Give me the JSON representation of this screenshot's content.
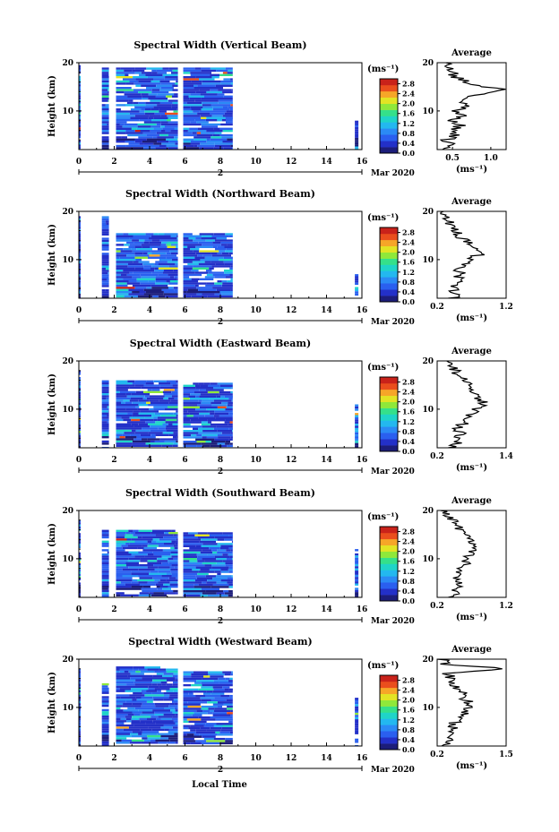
{
  "xlabel": "Local Time",
  "date_label": "Mar 2020",
  "day_marker": "2",
  "colorbar_unit": "(ms⁻¹)",
  "avg_xlabel": "(ms⁻¹)",
  "avg_title": "Average",
  "ylabel": "Height (km)",
  "colors": {
    "colormap": [
      "#1c1d7a",
      "#2330c8",
      "#2a5fef",
      "#2b8af5",
      "#23b8ef",
      "#1fd4c8",
      "#35e08a",
      "#8fe83a",
      "#e2e424",
      "#f6a628",
      "#ea4e1d",
      "#c9221a"
    ]
  },
  "chart_data": [
    {
      "type": "heatmap",
      "title": "Spectral Width (Vertical Beam)",
      "xlabel": "Local Time",
      "ylabel": "Height (km)",
      "xlim": [
        0,
        16
      ],
      "ylim": [
        2,
        20
      ],
      "xticks": [
        "0",
        "2",
        "4",
        "6",
        "8",
        "10",
        "12",
        "14",
        "16"
      ],
      "yticks": [
        "10",
        "20"
      ],
      "colorbar": {
        "ticks": [
          "0.0",
          "0.4",
          "0.8",
          "1.2",
          "1.6",
          "2.0",
          "2.4",
          "2.8"
        ],
        "range": [
          0,
          3.0
        ]
      },
      "data_blocks": [
        [
          0.0,
          0.1,
          0.0,
          19.5
        ],
        [
          1.3,
          1.7,
          2.0,
          19.0
        ],
        [
          2.1,
          5.6,
          2.5,
          19.0
        ],
        [
          5.9,
          8.7,
          2.5,
          19.0
        ],
        [
          15.6,
          15.8,
          2.0,
          8.0
        ]
      ],
      "average": {
        "xticks": [
          "0.5",
          "1.0"
        ],
        "xlim": [
          0.3,
          1.2
        ],
        "profile": [
          [
            2,
            0.45
          ],
          [
            3,
            0.5
          ],
          [
            4,
            0.42
          ],
          [
            5,
            0.55
          ],
          [
            6,
            0.5
          ],
          [
            7,
            0.6
          ],
          [
            8,
            0.48
          ],
          [
            9,
            0.62
          ],
          [
            10,
            0.55
          ],
          [
            11,
            0.7
          ],
          [
            12,
            0.6
          ],
          [
            13,
            0.75
          ],
          [
            14,
            1.05
          ],
          [
            14.5,
            1.15
          ],
          [
            15,
            0.9
          ],
          [
            16,
            0.7
          ],
          [
            17,
            0.55
          ],
          [
            18,
            0.5
          ],
          [
            19,
            0.45
          ],
          [
            20,
            0.4
          ]
        ]
      }
    },
    {
      "type": "heatmap",
      "title": "Spectral Width (Northward Beam)",
      "xlabel": "Local Time",
      "ylabel": "Height (km)",
      "xlim": [
        0,
        16
      ],
      "ylim": [
        2,
        20
      ],
      "xticks": [
        "0",
        "2",
        "4",
        "6",
        "8",
        "10",
        "12",
        "14",
        "16"
      ],
      "yticks": [
        "10",
        "20"
      ],
      "colorbar": {
        "ticks": [
          "0.0",
          "0.4",
          "0.8",
          "1.2",
          "1.6",
          "2.0",
          "2.4",
          "2.8"
        ],
        "range": [
          0,
          3.0
        ]
      },
      "data_blocks": [
        [
          0.0,
          0.1,
          0.0,
          19.0
        ],
        [
          1.3,
          1.7,
          2.0,
          19.0
        ],
        [
          2.1,
          5.6,
          2.5,
          15.5
        ],
        [
          5.9,
          8.7,
          2.5,
          15.5
        ],
        [
          15.6,
          15.8,
          2.0,
          7.0
        ]
      ],
      "average": {
        "xticks": [
          "0.2",
          "1.2"
        ],
        "xlim": [
          0.2,
          1.2
        ],
        "profile": [
          [
            2,
            0.45
          ],
          [
            3,
            0.5
          ],
          [
            4,
            0.42
          ],
          [
            5,
            0.52
          ],
          [
            6,
            0.48
          ],
          [
            7,
            0.55
          ],
          [
            8,
            0.5
          ],
          [
            9,
            0.6
          ],
          [
            10,
            0.7
          ],
          [
            11,
            0.8
          ],
          [
            12,
            0.75
          ],
          [
            13,
            0.7
          ],
          [
            14,
            0.6
          ],
          [
            15,
            0.5
          ],
          [
            16,
            0.45
          ],
          [
            17,
            0.4
          ],
          [
            18,
            0.38
          ],
          [
            19,
            0.35
          ],
          [
            20,
            0.3
          ]
        ]
      }
    },
    {
      "type": "heatmap",
      "title": "Spectral Width (Eastward Beam)",
      "xlabel": "Local Time",
      "ylabel": "Height (km)",
      "xlim": [
        0,
        16
      ],
      "ylim": [
        2,
        20
      ],
      "xticks": [
        "0",
        "2",
        "4",
        "6",
        "8",
        "10",
        "12",
        "14",
        "16"
      ],
      "yticks": [
        "10",
        "20"
      ],
      "colorbar": {
        "ticks": [
          "0.0",
          "0.4",
          "0.8",
          "1.2",
          "1.6",
          "2.0",
          "2.4",
          "2.8"
        ],
        "range": [
          0,
          3.0
        ]
      },
      "data_blocks": [
        [
          0.0,
          0.1,
          0.0,
          18.0
        ],
        [
          1.3,
          1.7,
          2.0,
          16.0
        ],
        [
          2.1,
          5.6,
          2.5,
          16.0
        ],
        [
          5.9,
          8.7,
          2.5,
          15.5
        ],
        [
          15.6,
          15.8,
          2.0,
          11.0
        ]
      ],
      "average": {
        "xticks": [
          "0.2",
          "1.4"
        ],
        "xlim": [
          0.2,
          1.4
        ],
        "profile": [
          [
            2,
            0.5
          ],
          [
            3,
            0.55
          ],
          [
            4,
            0.52
          ],
          [
            5,
            0.6
          ],
          [
            6,
            0.58
          ],
          [
            7,
            0.65
          ],
          [
            8,
            0.7
          ],
          [
            9,
            0.8
          ],
          [
            10,
            0.9
          ],
          [
            11,
            1.0
          ],
          [
            12,
            0.95
          ],
          [
            13,
            0.9
          ],
          [
            14,
            0.85
          ],
          [
            15,
            0.75
          ],
          [
            16,
            0.65
          ],
          [
            17,
            0.55
          ],
          [
            18,
            0.5
          ],
          [
            19,
            0.45
          ],
          [
            20,
            0.4
          ]
        ]
      }
    },
    {
      "type": "heatmap",
      "title": "Spectral Width (Southward Beam)",
      "xlabel": "Local Time",
      "ylabel": "Height (km)",
      "xlim": [
        0,
        16
      ],
      "ylim": [
        2,
        20
      ],
      "xticks": [
        "0",
        "2",
        "4",
        "6",
        "8",
        "10",
        "12",
        "14",
        "16"
      ],
      "yticks": [
        "10",
        "20"
      ],
      "colorbar": {
        "ticks": [
          "0.0",
          "0.4",
          "0.8",
          "1.2",
          "1.6",
          "2.0",
          "2.4",
          "2.8"
        ],
        "range": [
          0,
          3.0
        ]
      },
      "data_blocks": [
        [
          0.0,
          0.1,
          0.0,
          18.0
        ],
        [
          1.3,
          1.7,
          2.0,
          16.0
        ],
        [
          2.1,
          5.6,
          2.5,
          16.0
        ],
        [
          5.9,
          8.7,
          2.5,
          15.5
        ],
        [
          15.6,
          15.8,
          2.0,
          12.0
        ]
      ],
      "average": {
        "xticks": [
          "0.2",
          "1.2"
        ],
        "xlim": [
          0.2,
          1.2
        ],
        "profile": [
          [
            2,
            0.45
          ],
          [
            3,
            0.5
          ],
          [
            4,
            0.45
          ],
          [
            5,
            0.55
          ],
          [
            6,
            0.5
          ],
          [
            7,
            0.55
          ],
          [
            8,
            0.5
          ],
          [
            9,
            0.6
          ],
          [
            10,
            0.65
          ],
          [
            11,
            0.7
          ],
          [
            12,
            0.75
          ],
          [
            13,
            0.7
          ],
          [
            14,
            0.65
          ],
          [
            15,
            0.6
          ],
          [
            16,
            0.55
          ],
          [
            17,
            0.5
          ],
          [
            18,
            0.45
          ],
          [
            19,
            0.35
          ],
          [
            20,
            0.3
          ]
        ]
      }
    },
    {
      "type": "heatmap",
      "title": "Spectral Width (Westward Beam)",
      "xlabel": "Local Time",
      "ylabel": "Height (km)",
      "xlim": [
        0,
        16
      ],
      "ylim": [
        2,
        20
      ],
      "xticks": [
        "0",
        "2",
        "4",
        "6",
        "8",
        "10",
        "12",
        "14",
        "16"
      ],
      "yticks": [
        "10",
        "20"
      ],
      "colorbar": {
        "ticks": [
          "0.0",
          "0.4",
          "0.8",
          "1.2",
          "1.6",
          "2.0",
          "2.4",
          "2.8"
        ],
        "range": [
          0,
          3.0
        ]
      },
      "data_blocks": [
        [
          0.0,
          0.1,
          0.0,
          18.0
        ],
        [
          1.3,
          1.7,
          2.0,
          15.0
        ],
        [
          2.1,
          5.6,
          2.5,
          18.5
        ],
        [
          5.9,
          8.7,
          2.5,
          17.5
        ],
        [
          15.6,
          15.8,
          2.0,
          12.0
        ]
      ],
      "average": {
        "xticks": [
          "0.2",
          "1.5"
        ],
        "xlim": [
          0.2,
          1.5
        ],
        "profile": [
          [
            2,
            0.4
          ],
          [
            3,
            0.45
          ],
          [
            4,
            0.4
          ],
          [
            5,
            0.5
          ],
          [
            6,
            0.48
          ],
          [
            7,
            0.55
          ],
          [
            8,
            0.6
          ],
          [
            9,
            0.7
          ],
          [
            10,
            0.75
          ],
          [
            11,
            0.8
          ],
          [
            12,
            0.7
          ],
          [
            13,
            0.65
          ],
          [
            14,
            0.55
          ],
          [
            15,
            0.5
          ],
          [
            16,
            0.45
          ],
          [
            17,
            0.4
          ],
          [
            18,
            1.45
          ],
          [
            19,
            0.35
          ],
          [
            20,
            0.3
          ]
        ]
      }
    }
  ]
}
